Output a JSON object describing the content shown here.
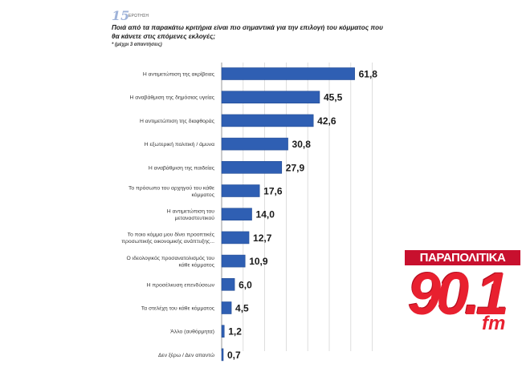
{
  "header": {
    "question_number": "15",
    "question_word": "ΕΡΩΤΗΣΗ",
    "question_text": "Ποιά από τα παρακάτω κριτήρια είναι πιο σημαντικά για την επιλογή του κόμματος που θα κάνετε στις επόμενες εκλογές;",
    "note": "* (μέχρι 3 απαντήσεις)"
  },
  "logo": {
    "title": "ΠΑΡΑΠΟΛΙΤΙΚΑ",
    "number": "90.1",
    "suffix": "fm"
  },
  "colors": {
    "bar": "#2f5fb3",
    "bar_edge": "#244c94",
    "grid": "#d6d6d6",
    "brand_red": "#e8202f"
  },
  "chart_data": {
    "type": "bar",
    "orientation": "horizontal",
    "xlim": [
      0,
      70
    ],
    "grid": true,
    "categories": [
      "Η αντιμετώπιση της ακρίβειας",
      "Η αναβάθμιση της δημόσιας υγείας",
      "Η αντιμετώπιση της διαφθοράς",
      "Η εξωτερική πολιτική / άμυνα",
      "Η αναβάθμιση της παιδείας",
      "Το πρόσωπο του αρχηγού του κάθε κόμματος",
      "Η αντιμετώπιση του μεταναστευτικού",
      "Το ποιο κόμμα μου δίνει προοπτικές προσωπικής οικονομικής ανάπτυξης...",
      "Ο ιδεολογικός προσανατολισμός του κάθε κόμματος",
      "Η προσέλκυση επενδύσεων",
      "Τα στελέχη του κάθε κόμματος",
      "Άλλο (αυθόρμητα)",
      "Δεν ξέρω / Δεν απαντώ"
    ],
    "category_lines": [
      [
        "Η αντιμετώπιση της ακρίβειας"
      ],
      [
        "Η αναβάθμιση της δημόσιας υγείας"
      ],
      [
        "Η αντιμετώπιση της διαφθοράς"
      ],
      [
        "Η εξωτερική πολιτική / άμυνα"
      ],
      [
        "Η αναβάθμιση της παιδείας"
      ],
      [
        "Το πρόσωπο του αρχηγού του κάθε",
        "κόμματος"
      ],
      [
        "Η αντιμετώπιση του",
        "μεταναστευτικού"
      ],
      [
        "Το ποιο κόμμα μου δίνει προοπτικές",
        "προσωπικής οικονομικής ανάπτυξης..."
      ],
      [
        "Ο ιδεολογικός προσανατολισμός του",
        "κάθε κόμματος"
      ],
      [
        "Η προσέλκυση επενδύσεων"
      ],
      [
        "Τα στελέχη του κάθε κόμματος"
      ],
      [
        "Άλλο (αυθόρμητα)"
      ],
      [
        "Δεν ξέρω / Δεν απαντώ"
      ]
    ],
    "values": [
      61.8,
      45.5,
      42.6,
      30.8,
      27.9,
      17.6,
      14.0,
      12.7,
      10.9,
      6.0,
      4.5,
      1.2,
      0.7
    ],
    "value_labels": [
      "61,8",
      "45,5",
      "42,6",
      "30,8",
      "27,9",
      "17,6",
      "14,0",
      "12,7",
      "10,9",
      "6,0",
      "4,5",
      "1,2",
      "0,7"
    ]
  }
}
